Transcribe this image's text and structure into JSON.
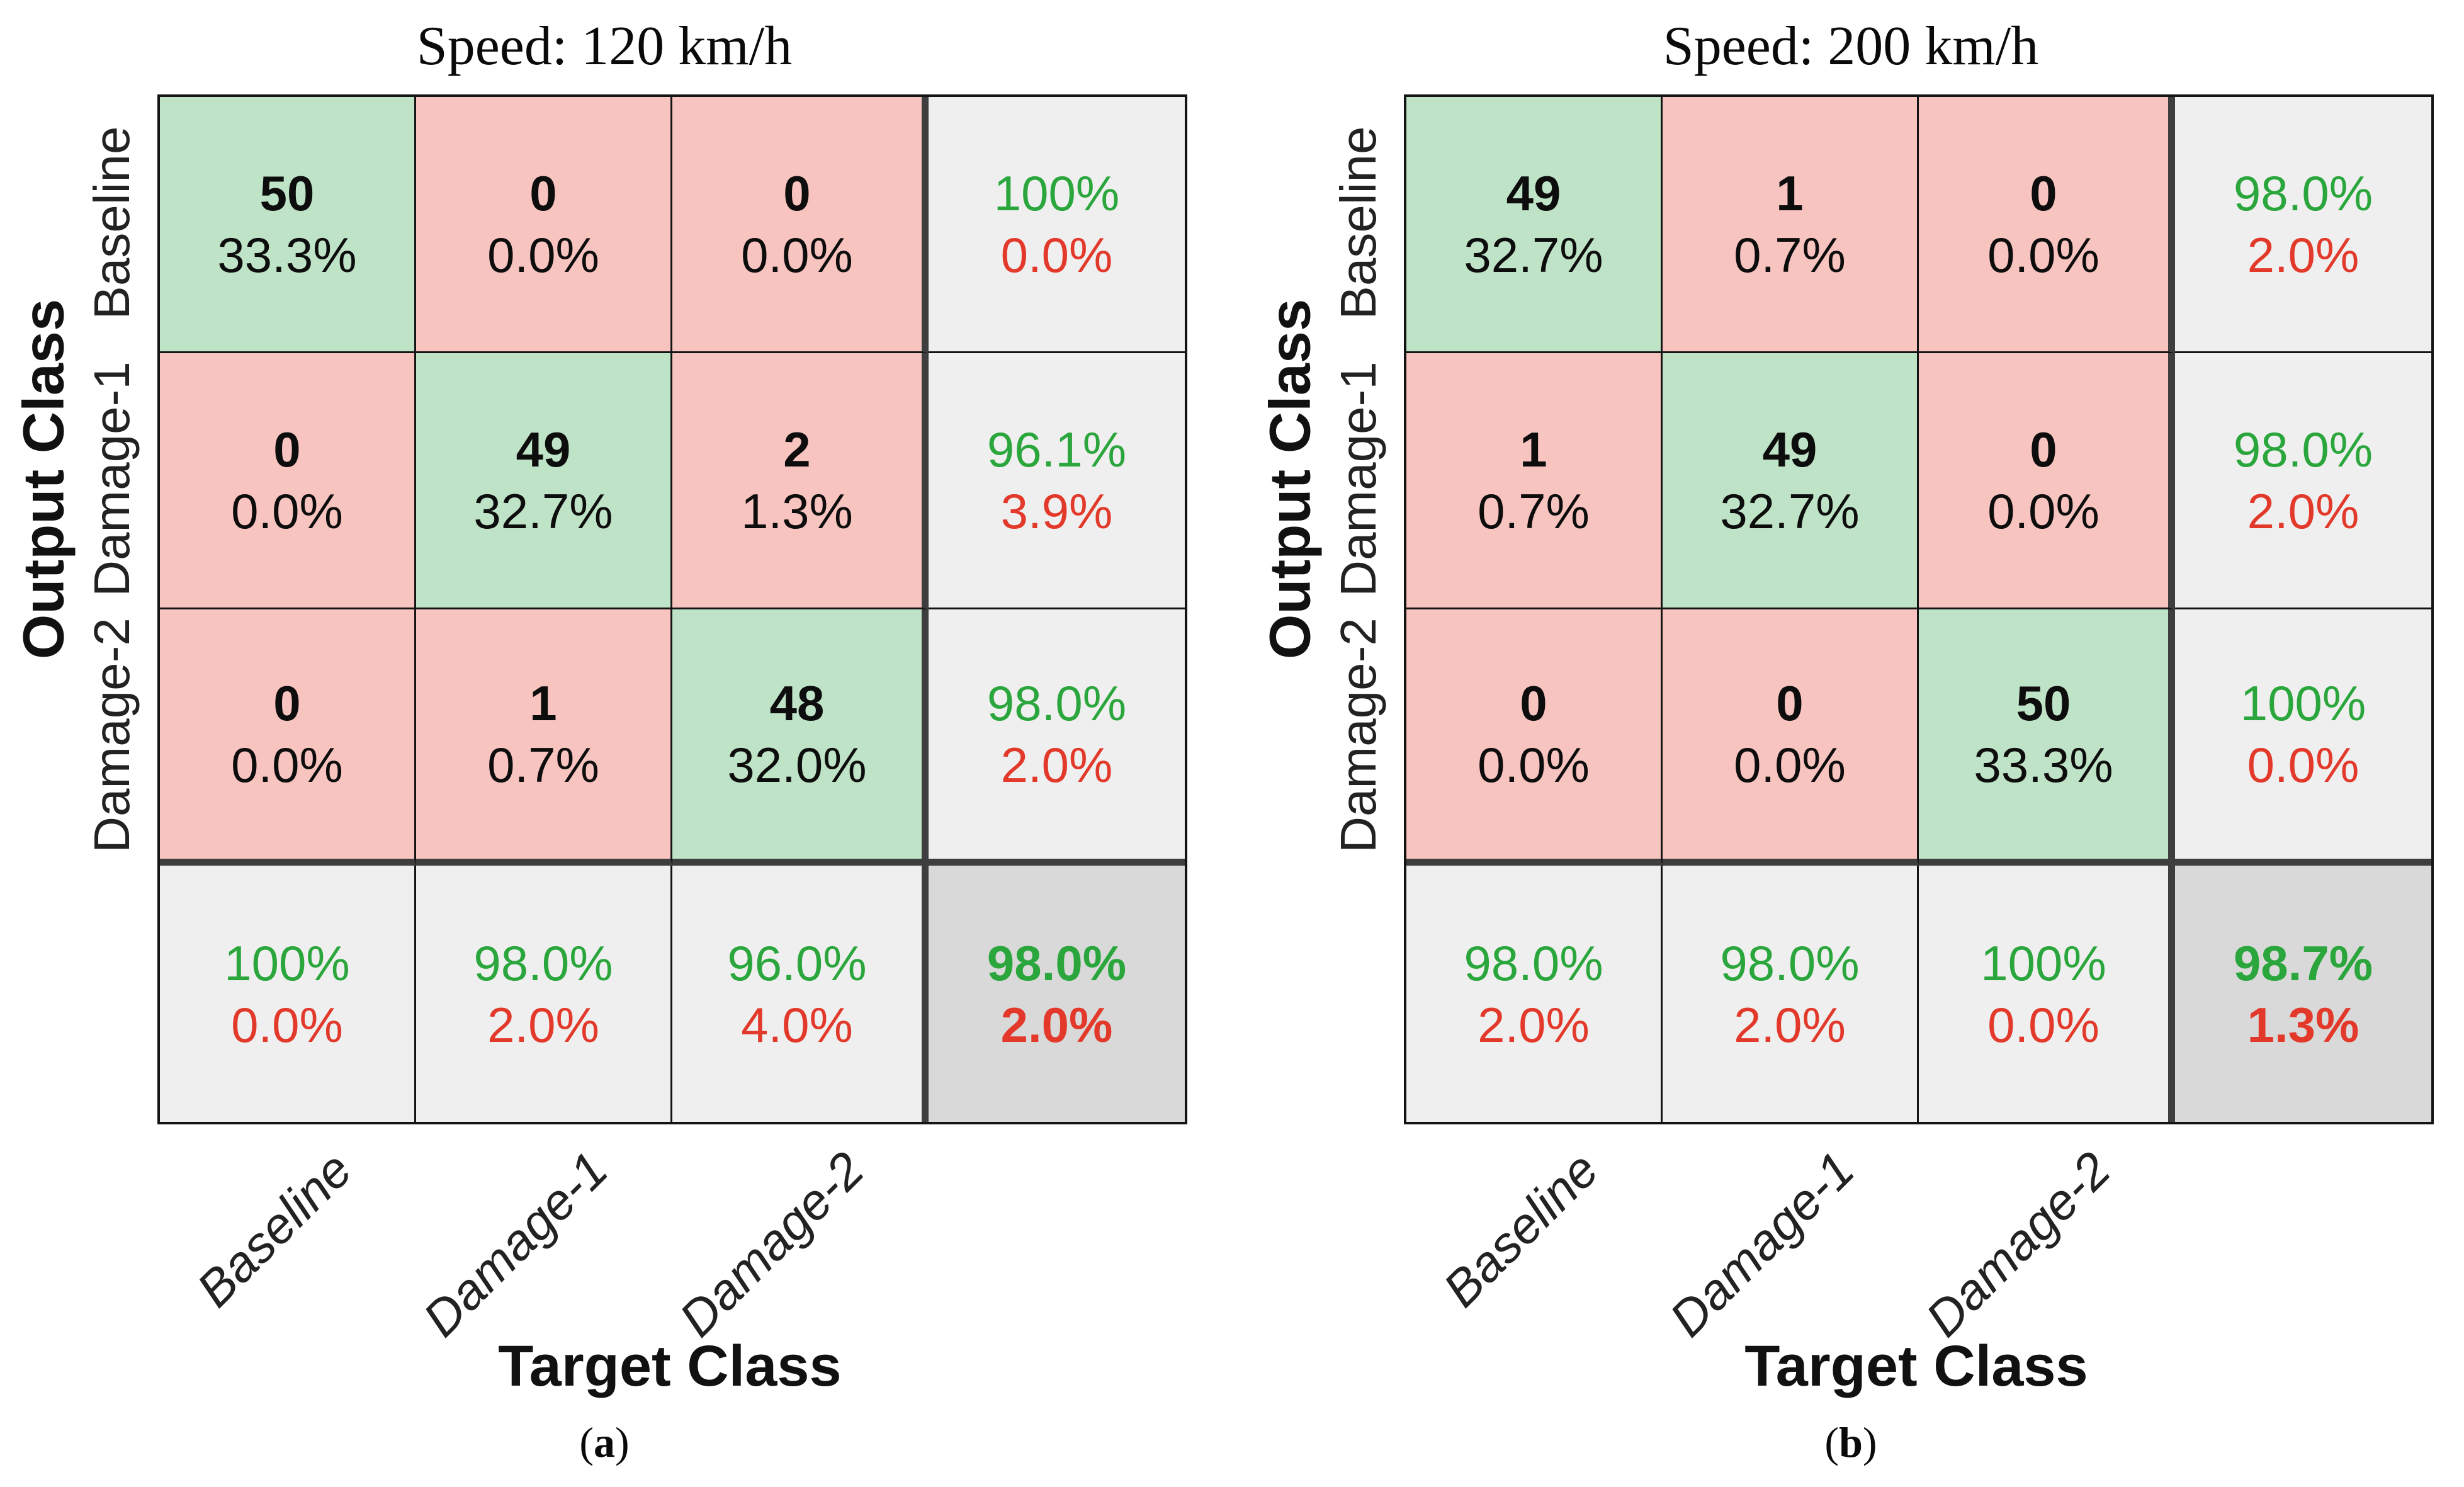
{
  "figure": {
    "kind": "confusion-matrix-figure",
    "colors": {
      "correct_cell_bg": "#bfe3c6",
      "incorrect_cell_bg": "#f8c4bf",
      "summary_cell_bg": "#efefef",
      "overall_cell_bg": "#d9d9d9",
      "positive_text": "#2aa63c",
      "negative_text": "#e2392b",
      "grid_line": "#141414",
      "separator_line": "#3e3e3e"
    }
  },
  "chart_data": [
    {
      "type": "heatmap",
      "subtype": "confusion-matrix",
      "title": "Speed: 120 km/h",
      "xlabel": "Target Class",
      "ylabel": "Output Class",
      "caption": {
        "open": "(",
        "letter": "a",
        "close": ")"
      },
      "classes": [
        "Baseline",
        "Damage-1",
        "Damage-2"
      ],
      "counts": [
        [
          50,
          0,
          0
        ],
        [
          0,
          49,
          2
        ],
        [
          0,
          1,
          48
        ]
      ],
      "cells": [
        [
          {
            "n": "50",
            "p": "33.3%"
          },
          {
            "n": "0",
            "p": "0.0%"
          },
          {
            "n": "0",
            "p": "0.0%"
          }
        ],
        [
          {
            "n": "0",
            "p": "0.0%"
          },
          {
            "n": "49",
            "p": "32.7%"
          },
          {
            "n": "2",
            "p": "1.3%"
          }
        ],
        [
          {
            "n": "0",
            "p": "0.0%"
          },
          {
            "n": "1",
            "p": "0.7%"
          },
          {
            "n": "48",
            "p": "32.0%"
          }
        ]
      ],
      "row_summary": [
        {
          "g": "100%",
          "r": "0.0%"
        },
        {
          "g": "96.1%",
          "r": "3.9%"
        },
        {
          "g": "98.0%",
          "r": "2.0%"
        }
      ],
      "col_summary": [
        {
          "g": "100%",
          "r": "0.0%"
        },
        {
          "g": "98.0%",
          "r": "2.0%"
        },
        {
          "g": "96.0%",
          "r": "4.0%"
        }
      ],
      "overall": {
        "g": "98.0%",
        "r": "2.0%"
      }
    },
    {
      "type": "heatmap",
      "subtype": "confusion-matrix",
      "title": "Speed: 200 km/h",
      "xlabel": "Target Class",
      "ylabel": "Output Class",
      "caption": {
        "open": "(",
        "letter": "b",
        "close": ")"
      },
      "classes": [
        "Baseline",
        "Damage-1",
        "Damage-2"
      ],
      "counts": [
        [
          49,
          1,
          0
        ],
        [
          1,
          49,
          0
        ],
        [
          0,
          0,
          50
        ]
      ],
      "cells": [
        [
          {
            "n": "49",
            "p": "32.7%"
          },
          {
            "n": "1",
            "p": "0.7%"
          },
          {
            "n": "0",
            "p": "0.0%"
          }
        ],
        [
          {
            "n": "1",
            "p": "0.7%"
          },
          {
            "n": "49",
            "p": "32.7%"
          },
          {
            "n": "0",
            "p": "0.0%"
          }
        ],
        [
          {
            "n": "0",
            "p": "0.0%"
          },
          {
            "n": "0",
            "p": "0.0%"
          },
          {
            "n": "50",
            "p": "33.3%"
          }
        ]
      ],
      "row_summary": [
        {
          "g": "98.0%",
          "r": "2.0%"
        },
        {
          "g": "98.0%",
          "r": "2.0%"
        },
        {
          "g": "100%",
          "r": "0.0%"
        }
      ],
      "col_summary": [
        {
          "g": "98.0%",
          "r": "2.0%"
        },
        {
          "g": "98.0%",
          "r": "2.0%"
        },
        {
          "g": "100%",
          "r": "0.0%"
        }
      ],
      "overall": {
        "g": "98.7%",
        "r": "1.3%"
      }
    }
  ]
}
